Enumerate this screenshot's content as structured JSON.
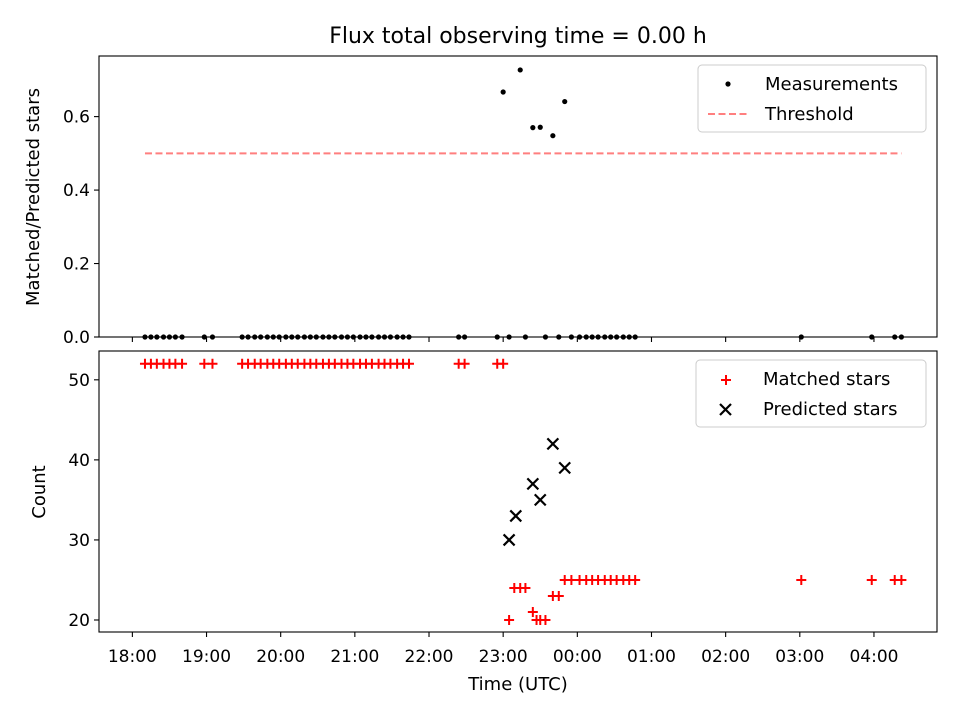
{
  "figure": {
    "title": "Flux total observing time = 0.00 h"
  },
  "chart_data": [
    {
      "type": "scatter",
      "panel": "top",
      "ylabel": "Matched/Predicted stars",
      "xlabel": "",
      "ylim": [
        0.0,
        0.765
      ],
      "xlim": [
        -0.45,
        10.85
      ],
      "yticks": [
        0.0,
        0.2,
        0.4,
        0.6
      ],
      "ytick_labels": [
        "0.0",
        "0.2",
        "0.4",
        "0.6"
      ],
      "legend_position": "top-right",
      "grid": false,
      "series": [
        {
          "name": "Measurements",
          "kind": "points",
          "color": "#000000",
          "x": [
            0.17,
            0.25,
            0.33,
            0.42,
            0.5,
            0.58,
            0.67,
            0.97,
            1.08,
            1.48,
            1.56,
            1.65,
            1.73,
            1.82,
            1.9,
            1.98,
            2.07,
            2.15,
            2.23,
            2.32,
            2.4,
            2.48,
            2.57,
            2.65,
            2.73,
            2.82,
            2.9,
            2.98,
            3.07,
            3.15,
            3.23,
            3.32,
            3.4,
            3.48,
            3.57,
            3.65,
            3.73,
            4.4,
            4.48,
            4.92,
            5.0,
            5.08,
            5.23,
            5.3,
            5.4,
            5.5,
            5.57,
            5.67,
            5.75,
            5.83,
            5.92,
            6.03,
            6.12,
            6.2,
            6.28,
            6.37,
            6.45,
            6.53,
            6.62,
            6.7,
            6.78,
            9.02,
            9.97,
            10.28,
            10.37
          ],
          "y": [
            0,
            0,
            0,
            0,
            0,
            0,
            0,
            0,
            0,
            0,
            0,
            0,
            0,
            0,
            0,
            0,
            0,
            0,
            0,
            0,
            0,
            0,
            0,
            0,
            0,
            0,
            0,
            0,
            0,
            0,
            0,
            0,
            0,
            0,
            0,
            0,
            0,
            0,
            0,
            0,
            0.667,
            0,
            0.727,
            0,
            0.57,
            0.571,
            0,
            0.548,
            0,
            0.641,
            0,
            0,
            0,
            0,
            0,
            0,
            0,
            0,
            0,
            0,
            0,
            0,
            0,
            0,
            0
          ]
        },
        {
          "name": "Threshold",
          "kind": "dashed-line",
          "color": "#ff7f7f",
          "x": [
            0.17,
            10.37
          ],
          "y": [
            0.5,
            0.5
          ]
        }
      ]
    },
    {
      "type": "scatter",
      "panel": "bottom",
      "xlabel": "Time (UTC)",
      "ylabel": "Count",
      "ylim": [
        18.5,
        53.6
      ],
      "xlim": [
        -0.45,
        10.85
      ],
      "xticks": [
        0,
        1,
        2,
        3,
        4,
        5,
        6,
        7,
        8,
        9,
        10
      ],
      "xtick_labels": [
        "18:00",
        "19:00",
        "20:00",
        "21:00",
        "22:00",
        "23:00",
        "00:00",
        "01:00",
        "02:00",
        "03:00",
        "04:00"
      ],
      "yticks": [
        20,
        30,
        40,
        50
      ],
      "ytick_labels": [
        "20",
        "30",
        "40",
        "50"
      ],
      "legend_position": "top-right",
      "grid": false,
      "series": [
        {
          "name": "Matched stars",
          "kind": "plus",
          "color": "#ff0000",
          "x": [
            0.17,
            0.25,
            0.33,
            0.42,
            0.5,
            0.58,
            0.67,
            0.97,
            1.08,
            1.48,
            1.56,
            1.65,
            1.73,
            1.82,
            1.9,
            1.98,
            2.07,
            2.15,
            2.23,
            2.32,
            2.4,
            2.48,
            2.57,
            2.65,
            2.73,
            2.82,
            2.9,
            2.98,
            3.07,
            3.15,
            3.23,
            3.32,
            3.4,
            3.48,
            3.57,
            3.65,
            3.73,
            4.4,
            4.48,
            4.92,
            5.0,
            5.08,
            5.15,
            5.23,
            5.3,
            5.4,
            5.45,
            5.5,
            5.57,
            5.67,
            5.75,
            5.83,
            5.92,
            6.03,
            6.12,
            6.2,
            6.28,
            6.37,
            6.45,
            6.53,
            6.62,
            6.7,
            6.78,
            9.02,
            9.97,
            10.28,
            10.37
          ],
          "y": [
            52,
            52,
            52,
            52,
            52,
            52,
            52,
            52,
            52,
            52,
            52,
            52,
            52,
            52,
            52,
            52,
            52,
            52,
            52,
            52,
            52,
            52,
            52,
            52,
            52,
            52,
            52,
            52,
            52,
            52,
            52,
            52,
            52,
            52,
            52,
            52,
            52,
            52,
            52,
            52,
            52,
            20,
            24,
            24,
            24,
            21,
            20,
            20,
            20,
            23,
            23,
            25,
            25,
            25,
            25,
            25,
            25,
            25,
            25,
            25,
            25,
            25,
            25,
            25,
            25,
            25,
            25
          ]
        },
        {
          "name": "Predicted stars",
          "kind": "cross",
          "color": "#000000",
          "x": [
            5.08,
            5.17,
            5.4,
            5.5,
            5.67,
            5.83
          ],
          "y": [
            30,
            33,
            37,
            35,
            42,
            39
          ]
        }
      ]
    }
  ]
}
